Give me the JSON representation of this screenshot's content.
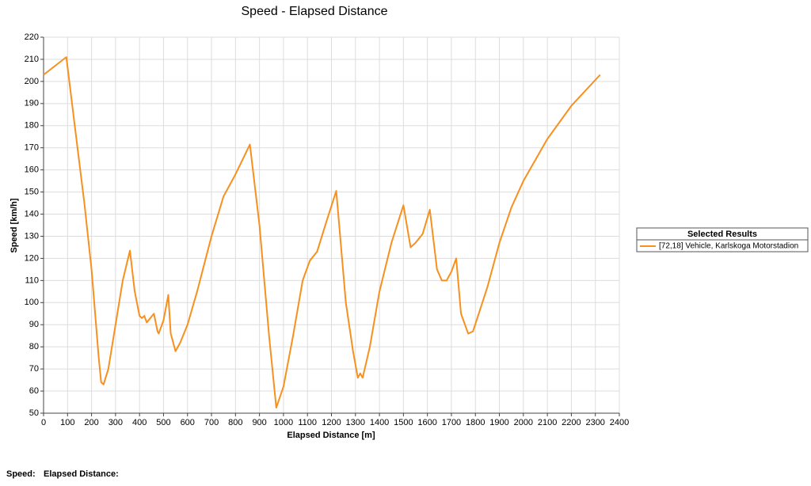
{
  "chart_data": {
    "type": "line",
    "title": "Speed - Elapsed Distance",
    "x_label": "Elapsed Distance [m]",
    "y_label": "Speed [km/h]",
    "x": [
      0,
      95,
      130,
      170,
      200,
      230,
      240,
      250,
      270,
      300,
      330,
      360,
      380,
      400,
      410,
      420,
      430,
      460,
      475,
      480,
      500,
      520,
      530,
      550,
      570,
      600,
      640,
      700,
      750,
      800,
      860,
      900,
      940,
      970,
      1000,
      1040,
      1080,
      1110,
      1140,
      1180,
      1220,
      1260,
      1290,
      1310,
      1320,
      1330,
      1360,
      1400,
      1450,
      1500,
      1530,
      1550,
      1580,
      1610,
      1640,
      1660,
      1680,
      1700,
      1720,
      1740,
      1770,
      1790,
      1850,
      1900,
      1950,
      2000,
      2100,
      2200,
      2320
    ],
    "series": [
      {
        "name": "[72,18] Vehicle, Karlskoga Motorstadion",
        "color": "#f7901e",
        "values": [
          203,
          211,
          180,
          145,
          115,
          75,
          64,
          63,
          70,
          90,
          110,
          123.5,
          105,
          94,
          93,
          94,
          91,
          95,
          87,
          86,
          92,
          103.5,
          86,
          78,
          82,
          90,
          105,
          130,
          148,
          158,
          171.5,
          135,
          85,
          52.5,
          62,
          85,
          110,
          119,
          123,
          137,
          150.5,
          100,
          78,
          66,
          68,
          66,
          80,
          105,
          127,
          144,
          125,
          127,
          131,
          142,
          115,
          110,
          110,
          114,
          120,
          95,
          86,
          87,
          107,
          127,
          143,
          155,
          174,
          189,
          203
        ]
      }
    ],
    "xlim": [
      0,
      2400
    ],
    "xticks": [
      0,
      100,
      200,
      300,
      400,
      500,
      600,
      700,
      800,
      900,
      1000,
      1100,
      1200,
      1300,
      1400,
      1500,
      1600,
      1700,
      1800,
      1900,
      2000,
      2100,
      2200,
      2300,
      2400
    ],
    "ylim": [
      50,
      220
    ],
    "yticks": [
      50,
      60,
      70,
      80,
      90,
      100,
      110,
      120,
      130,
      140,
      150,
      160,
      170,
      180,
      190,
      200,
      210,
      220
    ],
    "grid": true,
    "legend_title": "Selected Results",
    "legend_position": "right"
  },
  "footer": {
    "labels": [
      "Speed:",
      "Elapsed Distance:"
    ]
  }
}
